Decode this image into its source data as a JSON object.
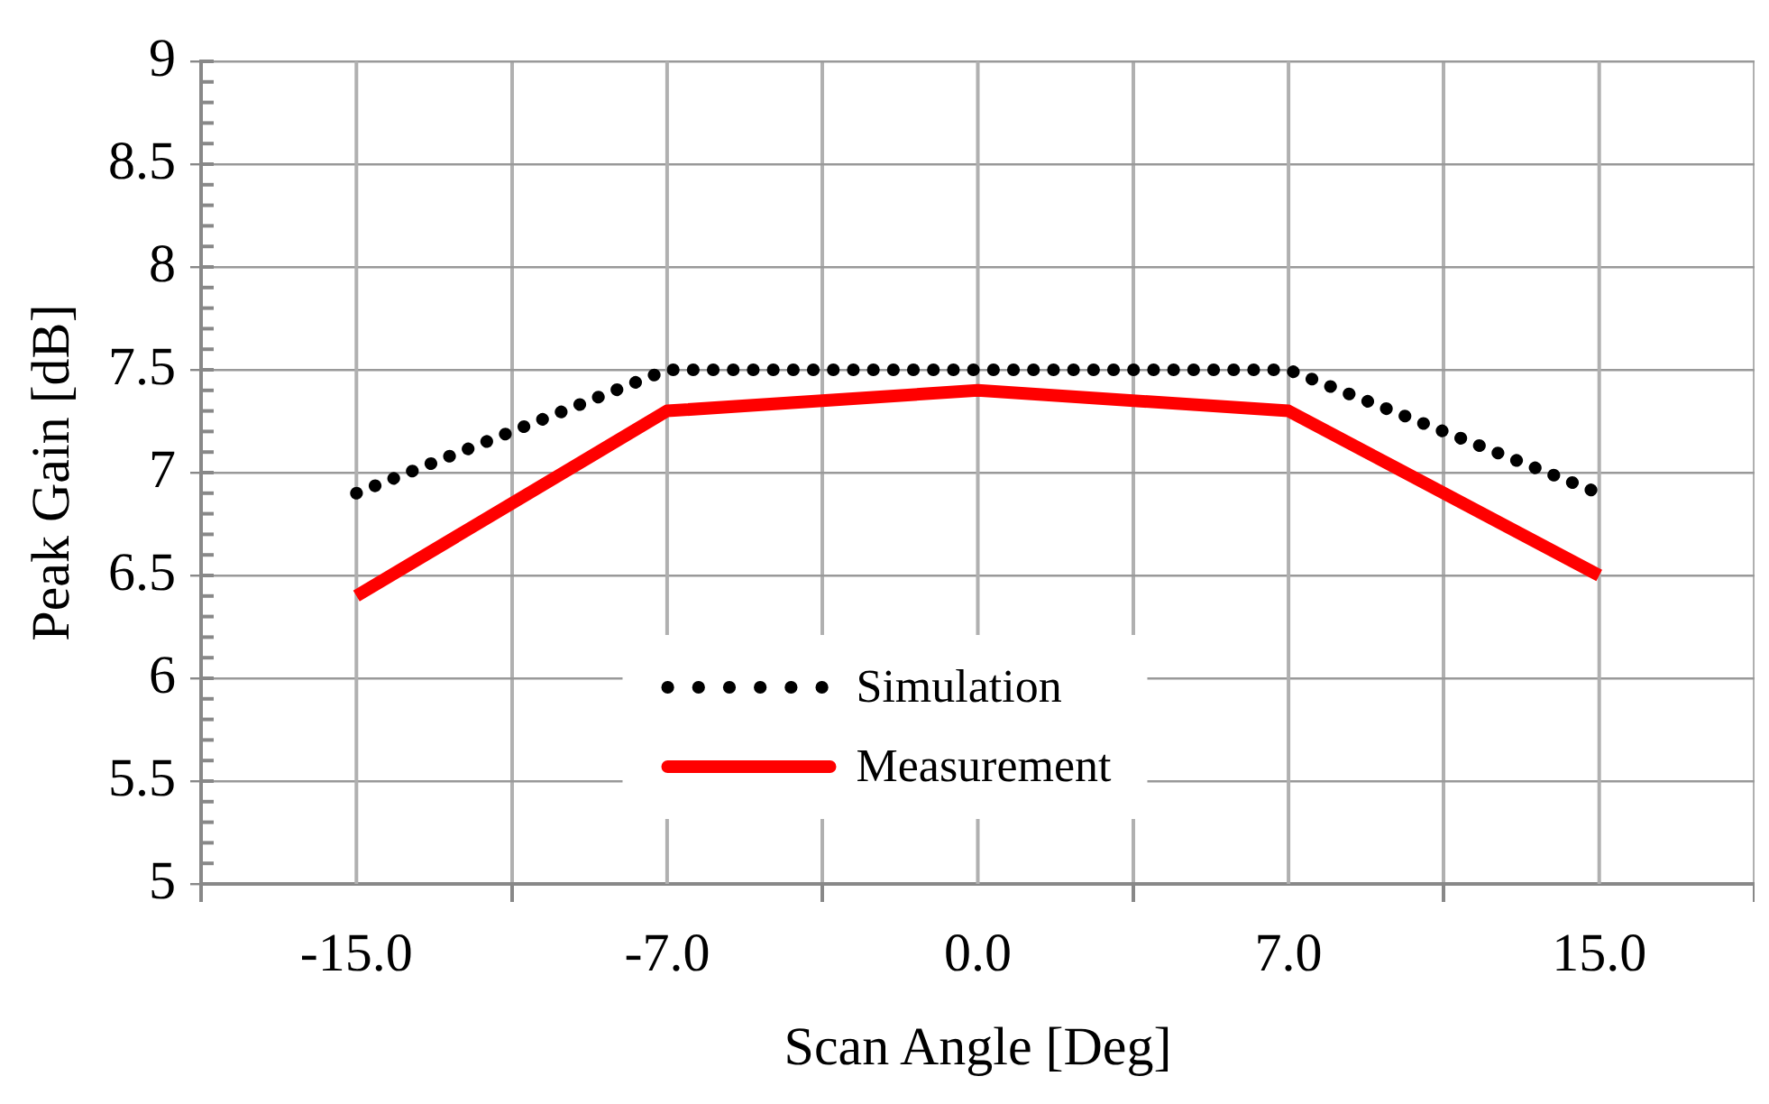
{
  "chart_data": {
    "type": "line",
    "xlabel": "Scan Angle [Deg]",
    "ylabel": "Peak Gain [dB]",
    "categories": [
      "-15.0",
      "-7.0",
      "0.0",
      "7.0",
      "15.0"
    ],
    "series": [
      {
        "name": "Simulation",
        "color": "#000000",
        "line_style": "dotted",
        "values": [
          6.9,
          7.5,
          7.5,
          7.5,
          6.9
        ]
      },
      {
        "name": "Measurement",
        "color": "#ff0000",
        "line_style": "solid",
        "values": [
          6.4,
          7.3,
          7.4,
          7.3,
          6.5
        ]
      }
    ],
    "ylim": [
      5,
      9
    ],
    "yticks": [
      5,
      5.5,
      6,
      6.5,
      7,
      7.5,
      8,
      8.5,
      9
    ],
    "grid": true,
    "legend": "bottom"
  }
}
